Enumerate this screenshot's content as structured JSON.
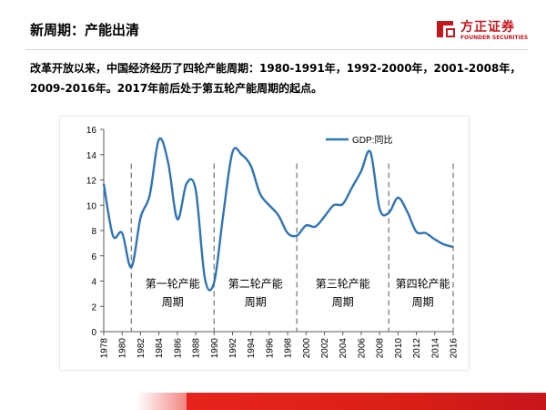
{
  "slide": {
    "title": "新周期：产能出清",
    "summary": "改革开放以来，中国经济经历了四轮产能周期：1980-1991年，1992-2000年，2001-2008年，2009-2016年。2017年前后处于第五轮产能周期的起点。"
  },
  "logo": {
    "cn": "方正证券",
    "en": "FOUNDER SECURITIES",
    "color": "#c8161d"
  },
  "chart_data": {
    "type": "line",
    "title": "",
    "xlabel": "",
    "ylabel": "",
    "xlim": [
      1978,
      2016
    ],
    "ylim": [
      0,
      16
    ],
    "yticks": [
      0,
      2,
      4,
      6,
      8,
      10,
      12,
      14,
      16
    ],
    "xticks": [
      "1978",
      "1980",
      "1982",
      "1984",
      "1986",
      "1988",
      "1990",
      "1992",
      "1994",
      "1996",
      "1998",
      "2000",
      "2002",
      "2004",
      "2006",
      "2008",
      "2010",
      "2012",
      "2014",
      "2016"
    ],
    "legend_position": "top-right",
    "grid": false,
    "series": [
      {
        "name": "GDP:同比",
        "color": "#2e75b6",
        "x": [
          1978,
          1979,
          1980,
          1981,
          1982,
          1983,
          1984,
          1985,
          1986,
          1987,
          1988,
          1989,
          1990,
          1991,
          1992,
          1993,
          1994,
          1995,
          1996,
          1997,
          1998,
          1999,
          2000,
          2001,
          2002,
          2003,
          2004,
          2005,
          2006,
          2007,
          2008,
          2009,
          2010,
          2011,
          2012,
          2013,
          2014,
          2015,
          2016
        ],
        "values": [
          11.7,
          7.6,
          7.8,
          5.1,
          9.0,
          10.8,
          15.2,
          13.4,
          8.9,
          11.7,
          11.2,
          4.2,
          3.9,
          9.3,
          14.2,
          14.0,
          13.1,
          10.9,
          10.0,
          9.2,
          7.8,
          7.6,
          8.4,
          8.3,
          9.1,
          10.0,
          10.1,
          11.4,
          12.7,
          14.2,
          9.7,
          9.4,
          10.6,
          9.5,
          7.9,
          7.8,
          7.3,
          6.9,
          6.7
        ]
      }
    ],
    "cycle_dividers": [
      1981,
      1990,
      1999,
      2009,
      2016
    ],
    "annotations": [
      {
        "x": 1985.5,
        "y": 3.5,
        "lines": [
          "第一轮产能",
          "周期"
        ]
      },
      {
        "x": 1994.5,
        "y": 3.5,
        "lines": [
          "第二轮产能",
          "周期"
        ]
      },
      {
        "x": 2004.0,
        "y": 3.5,
        "lines": [
          "第三轮产能",
          "周期"
        ]
      },
      {
        "x": 2012.7,
        "y": 3.5,
        "lines": [
          "第四轮产能",
          "周期"
        ]
      }
    ]
  }
}
